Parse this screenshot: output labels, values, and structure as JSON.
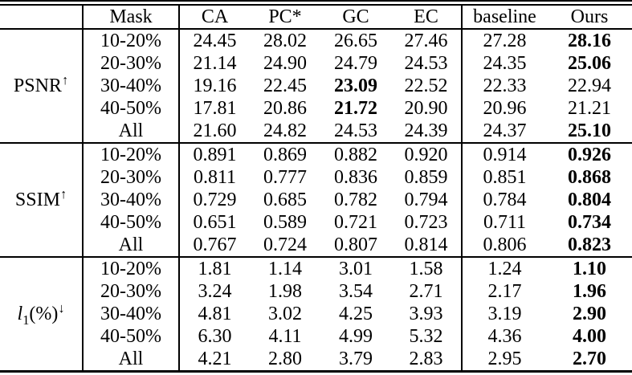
{
  "table": {
    "header": [
      "",
      "Mask",
      "CA",
      "PC*",
      "GC",
      "EC",
      "baseline",
      "Ours"
    ],
    "groups": [
      {
        "metric": {
          "text": "PSNR",
          "sub": "",
          "suffix": "",
          "arrow": "↑",
          "italic": false
        },
        "rows": [
          {
            "mask": "10-20%",
            "values": [
              "24.45",
              "28.02",
              "26.65",
              "27.46",
              "27.28",
              "28.16"
            ],
            "bold": [
              5
            ]
          },
          {
            "mask": "20-30%",
            "values": [
              "21.14",
              "24.90",
              "24.79",
              "24.53",
              "24.35",
              "25.06"
            ],
            "bold": [
              5
            ]
          },
          {
            "mask": "30-40%",
            "values": [
              "19.16",
              "22.45",
              "23.09",
              "22.52",
              "22.33",
              "22.94"
            ],
            "bold": [
              2
            ]
          },
          {
            "mask": "40-50%",
            "values": [
              "17.81",
              "20.86",
              "21.72",
              "20.90",
              "20.96",
              "21.21"
            ],
            "bold": [
              2
            ]
          },
          {
            "mask": "All",
            "values": [
              "21.60",
              "24.82",
              "24.53",
              "24.39",
              "24.37",
              "25.10"
            ],
            "bold": [
              5
            ]
          }
        ]
      },
      {
        "metric": {
          "text": "SSIM",
          "sub": "",
          "suffix": "",
          "arrow": "↑",
          "italic": false
        },
        "rows": [
          {
            "mask": "10-20%",
            "values": [
              "0.891",
              "0.869",
              "0.882",
              "0.920",
              "0.914",
              "0.926"
            ],
            "bold": [
              5
            ]
          },
          {
            "mask": "20-30%",
            "values": [
              "0.811",
              "0.777",
              "0.836",
              "0.859",
              "0.851",
              "0.868"
            ],
            "bold": [
              5
            ]
          },
          {
            "mask": "30-40%",
            "values": [
              "0.729",
              "0.685",
              "0.782",
              "0.794",
              "0.784",
              "0.804"
            ],
            "bold": [
              5
            ]
          },
          {
            "mask": "40-50%",
            "values": [
              "0.651",
              "0.589",
              "0.721",
              "0.723",
              "0.711",
              "0.734"
            ],
            "bold": [
              5
            ]
          },
          {
            "mask": "All",
            "values": [
              "0.767",
              "0.724",
              "0.807",
              "0.814",
              "0.806",
              "0.823"
            ],
            "bold": [
              5
            ]
          }
        ]
      },
      {
        "metric": {
          "text": "l",
          "sub": "1",
          "suffix": "(%)",
          "arrow": "↓",
          "italic": true
        },
        "rows": [
          {
            "mask": "10-20%",
            "values": [
              "1.81",
              "1.14",
              "3.01",
              "1.58",
              "1.24",
              "1.10"
            ],
            "bold": [
              5
            ]
          },
          {
            "mask": "20-30%",
            "values": [
              "3.24",
              "1.98",
              "3.54",
              "2.71",
              "2.17",
              "1.96"
            ],
            "bold": [
              5
            ]
          },
          {
            "mask": "30-40%",
            "values": [
              "4.81",
              "3.02",
              "4.25",
              "3.93",
              "3.19",
              "2.90"
            ],
            "bold": [
              5
            ]
          },
          {
            "mask": "40-50%",
            "values": [
              "6.30",
              "4.11",
              "4.99",
              "5.32",
              "4.36",
              "4.00"
            ],
            "bold": [
              5
            ]
          },
          {
            "mask": "All",
            "values": [
              "4.21",
              "2.80",
              "3.79",
              "2.83",
              "2.95",
              "2.70"
            ],
            "bold": [
              5
            ]
          }
        ]
      }
    ]
  },
  "colors": {
    "text": "#000000",
    "background": "#ffffff",
    "rule": "#000000"
  }
}
